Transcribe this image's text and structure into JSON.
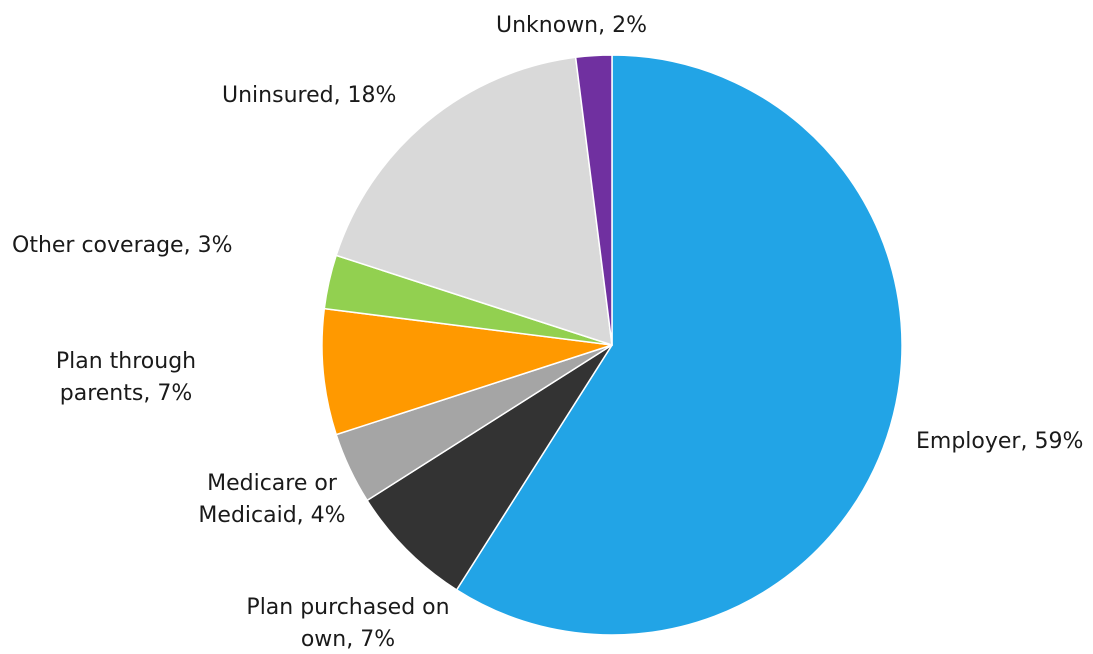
{
  "chart_data": {
    "type": "pie",
    "title": "",
    "slices": [
      {
        "label_lines": [
          "Employer, 59%"
        ],
        "value": 59,
        "color": "#22a4e6"
      },
      {
        "label_lines": [
          "Plan purchased on",
          "own, 7%"
        ],
        "value": 7,
        "color": "#333333"
      },
      {
        "label_lines": [
          "Medicare or",
          "Medicaid, 4%"
        ],
        "value": 4,
        "color": "#a5a5a5"
      },
      {
        "label_lines": [
          "Plan through",
          "parents, 7%"
        ],
        "value": 7,
        "color": "#ff9900"
      },
      {
        "label_lines": [
          "Other coverage, 3%"
        ],
        "value": 3,
        "color": "#92d050"
      },
      {
        "label_lines": [
          "Uninsured, 18%"
        ],
        "value": 18,
        "color": "#d9d9d9"
      },
      {
        "label_lines": [
          "Unknown, 2%"
        ],
        "value": 2,
        "color": "#7030a0"
      }
    ],
    "start_angle": "12 o'clock",
    "direction": "clockwise",
    "legend": "none (labels beside slices)"
  }
}
